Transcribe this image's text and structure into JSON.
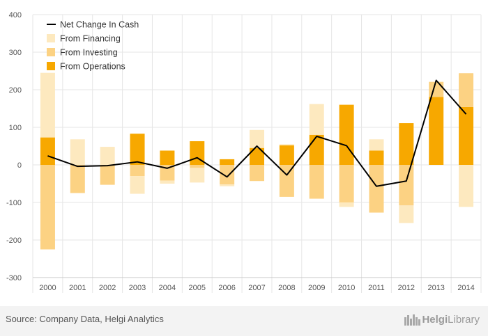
{
  "colors": {
    "financing": "#fde9bf",
    "investing": "#fcd283",
    "operations": "#f7a800",
    "line": "#000000",
    "grid": "#e6e6e6",
    "axis": "#c8c8c8",
    "tick_text": "#555555"
  },
  "chart_data": {
    "type": "bar",
    "stacked": true,
    "categories": [
      "2000",
      "2001",
      "2002",
      "2003",
      "2004",
      "2005",
      "2006",
      "2007",
      "2008",
      "2009",
      "2010",
      "2011",
      "2012",
      "2013",
      "2014"
    ],
    "ylim": [
      -300,
      400
    ],
    "yticks": [
      -300,
      -200,
      -100,
      0,
      100,
      200,
      300,
      400
    ],
    "grid": true,
    "legend_position": "top-left",
    "series": [
      {
        "name": "From Operations",
        "kind": "bar",
        "values": [
          73,
          0,
          0,
          83,
          38,
          63,
          15,
          45,
          52,
          80,
          160,
          38,
          111,
          181,
          154
        ]
      },
      {
        "name": "From Investing",
        "kind": "bar",
        "values": [
          -225,
          -75,
          -53,
          -30,
          -42,
          -8,
          -52,
          -43,
          -85,
          -90,
          -100,
          -127,
          -108,
          40,
          90
        ]
      },
      {
        "name": "From Financing",
        "kind": "bar",
        "values": [
          172,
          68,
          48,
          -47,
          -8,
          -39,
          -5,
          48,
          3,
          82,
          -12,
          30,
          -47,
          0,
          -112
        ]
      },
      {
        "name": "Net Change In Cash",
        "kind": "line",
        "values": [
          24,
          -4,
          -2,
          8,
          -9,
          19,
          -32,
          50,
          -27,
          76,
          51,
          -57,
          -43,
          225,
          135
        ]
      }
    ]
  },
  "footer": {
    "source": "Source: Company Data, Helgi Analytics",
    "logo_main": "Helgi",
    "logo_rest": "Library"
  }
}
